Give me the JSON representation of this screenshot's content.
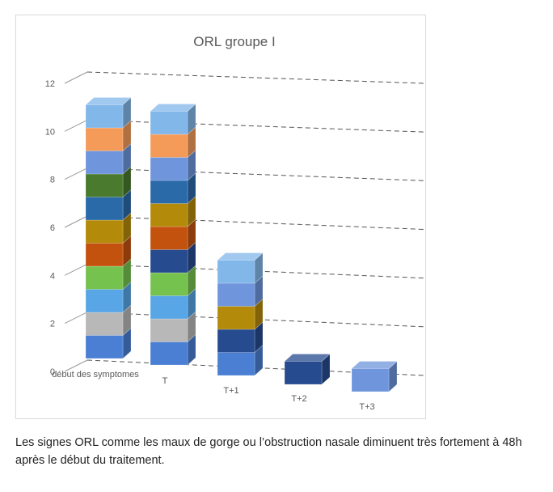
{
  "chart_data": {
    "type": "bar",
    "style": "3d-stacked",
    "title": "ORL groupe I",
    "categories": [
      "début des symptomes",
      "T",
      "T+1",
      "T+2",
      "T+3"
    ],
    "y_ticks": [
      "0",
      "2",
      "4",
      "6",
      "8",
      "10",
      "12"
    ],
    "ylim": [
      0,
      12
    ],
    "grid": "dashed horizontal",
    "legend": "none",
    "stack_unit": 1,
    "stacks": [
      [
        "#4a7fd4",
        "#b8b8b8",
        "#58a6e6",
        "#76c24f",
        "#c4520f",
        "#b48a0a",
        "#2b6aa8",
        "#4a7a2e",
        "#6f96dc",
        "#f49b5a",
        "#82b7ea"
      ],
      [
        "#4a7fd4",
        "#b8b8b8",
        "#58a6e6",
        "#76c24f",
        "#264b8f",
        "#c4520f",
        "#b48a0a",
        "#2b6aa8",
        "#6f96dc",
        "#f49b5a",
        "#82b7ea"
      ],
      [
        "#4a7fd4",
        "#264b8f",
        "#b48a0a",
        "#6f96dc",
        "#82b7ea"
      ],
      [
        "#264b8f"
      ],
      [
        "#6f96dc"
      ]
    ],
    "totals": [
      11,
      11,
      5,
      1,
      1
    ]
  },
  "caption": "Les signes ORL comme les maux de gorge ou l’obstruction nasale diminuent très fortement à 48h après le début du traitement."
}
